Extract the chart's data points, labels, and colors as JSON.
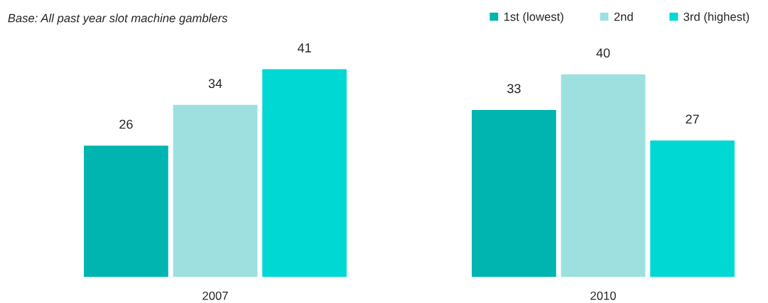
{
  "chart_data": {
    "type": "bar",
    "categories": [
      "2007",
      "2010"
    ],
    "series": [
      {
        "name": "1st (lowest)",
        "color": "#00b4b0",
        "values": [
          26,
          33
        ]
      },
      {
        "name": "2nd",
        "color": "#9ee0e0",
        "values": [
          34,
          40
        ]
      },
      {
        "name": "3rd (highest)",
        "color": "#00d8d4",
        "values": [
          41,
          27
        ]
      }
    ],
    "data_labels": true,
    "legend": "top right",
    "grid": false,
    "annotations": [
      "Base: All past year slot machine gamblers"
    ]
  }
}
